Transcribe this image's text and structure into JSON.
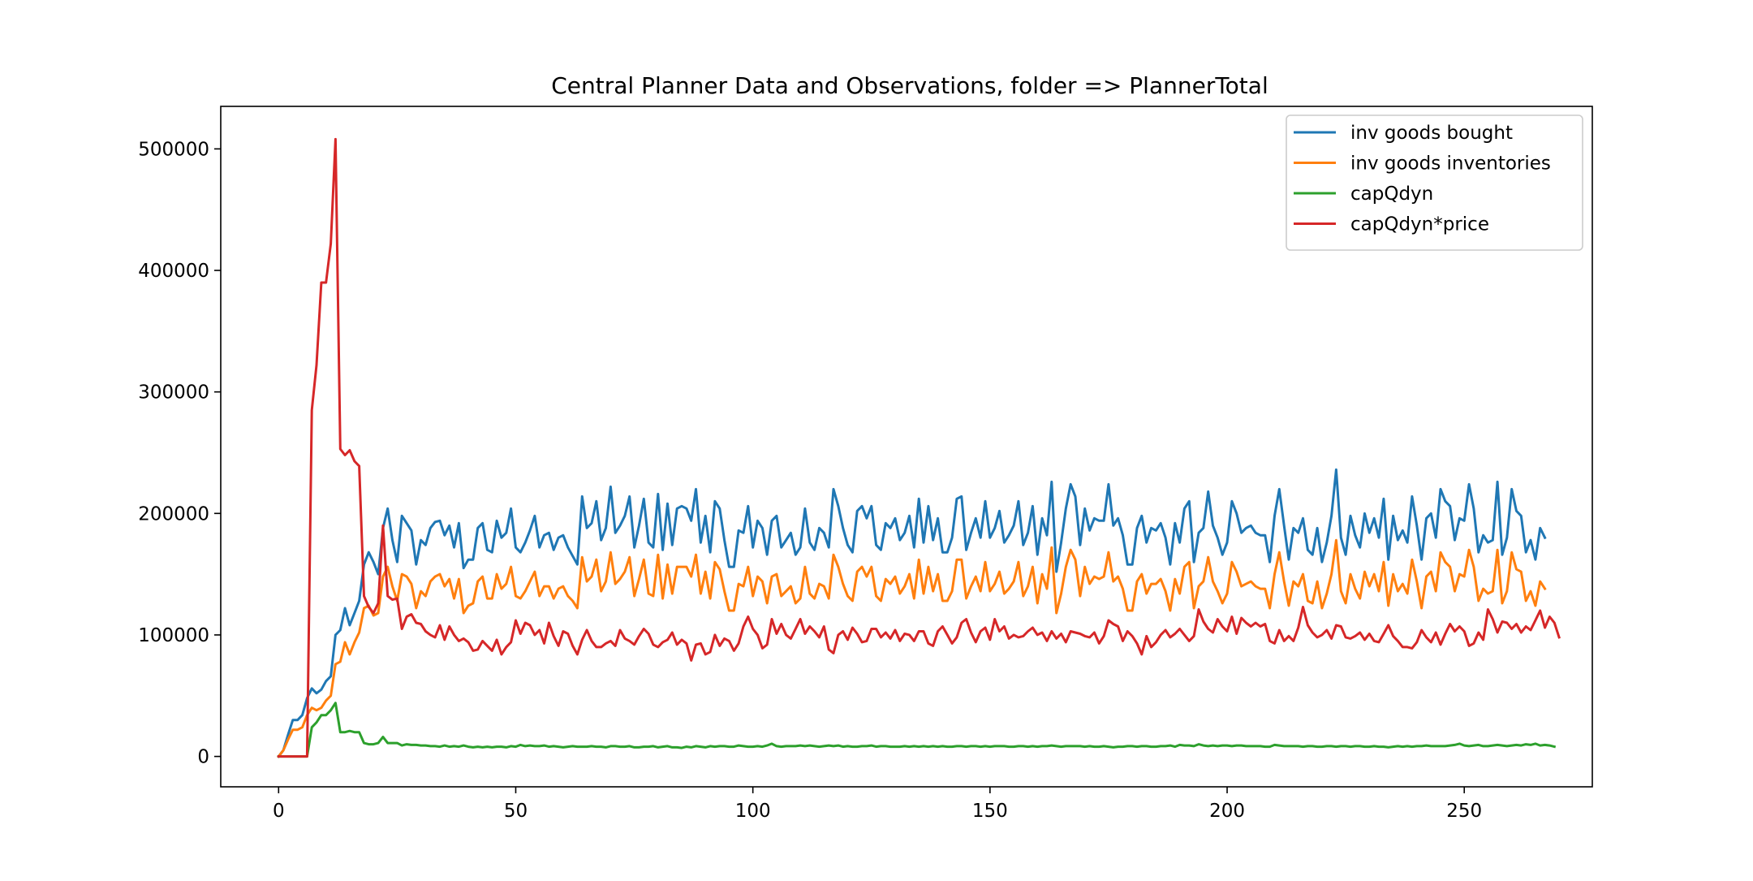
{
  "chart_data": {
    "type": "line",
    "title": "Central Planner Data and Observations, folder => PlannerTotal",
    "xlabel": "",
    "ylabel": "",
    "xlim": [
      -12.2,
      277
    ],
    "ylim": [
      -25000,
      535000
    ],
    "x_ticks": [
      0,
      50,
      100,
      150,
      200,
      250
    ],
    "y_ticks": [
      0,
      100000,
      200000,
      300000,
      400000,
      500000
    ],
    "x_tick_labels": [
      "0",
      "50",
      "100",
      "150",
      "200",
      "250"
    ],
    "y_tick_labels": [
      "0",
      "100000",
      "200000",
      "300000",
      "400000",
      "500000"
    ],
    "legend_position": "top-right",
    "grid": false,
    "x_start": 0,
    "x_step": 1,
    "series": [
      {
        "name": "inv goods bought",
        "color": "#1f77b4",
        "values": [
          0,
          5000,
          18000,
          30000,
          30000,
          34000,
          48000,
          56000,
          52000,
          55000,
          62000,
          66000,
          100000,
          104000,
          122000,
          108000,
          118000,
          128000,
          158000,
          168000,
          160000,
          150000,
          188000,
          204000,
          178000,
          160000,
          198000,
          192000,
          186000,
          158000,
          178000,
          174000,
          188000,
          193000,
          194000,
          182000,
          190000,
          172000,
          192000,
          155000,
          162000,
          162000,
          188000,
          192000,
          170000,
          168000,
          194000,
          180000,
          184000,
          204000,
          172000,
          168000,
          176000,
          186000,
          198000,
          172000,
          182000,
          184000,
          170000,
          180000,
          182000,
          172000,
          165000,
          158000,
          214000,
          188000,
          192000,
          210000,
          178000,
          188000,
          222000,
          184000,
          190000,
          198000,
          214000,
          172000,
          190000,
          212000,
          176000,
          172000,
          216000,
          170000,
          208000,
          174000,
          204000,
          206000,
          204000,
          194000,
          220000,
          176000,
          198000,
          168000,
          210000,
          204000,
          178000,
          156000,
          156000,
          186000,
          184000,
          206000,
          172000,
          194000,
          188000,
          166000,
          194000,
          198000,
          172000,
          178000,
          184000,
          166000,
          172000,
          204000,
          176000,
          170000,
          188000,
          184000,
          172000,
          220000,
          206000,
          188000,
          174000,
          168000,
          202000,
          206000,
          196000,
          206000,
          174000,
          170000,
          192000,
          188000,
          196000,
          178000,
          184000,
          198000,
          172000,
          212000,
          176000,
          206000,
          178000,
          196000,
          168000,
          168000,
          180000,
          212000,
          214000,
          170000,
          184000,
          196000,
          180000,
          210000,
          180000,
          188000,
          202000,
          176000,
          182000,
          190000,
          210000,
          174000,
          184000,
          206000,
          166000,
          196000,
          182000,
          226000,
          152000,
          176000,
          204000,
          224000,
          214000,
          174000,
          204000,
          186000,
          196000,
          194000,
          194000,
          224000,
          190000,
          196000,
          182000,
          158000,
          158000,
          188000,
          198000,
          176000,
          188000,
          186000,
          192000,
          180000,
          158000,
          192000,
          176000,
          204000,
          210000,
          160000,
          184000,
          188000,
          218000,
          190000,
          180000,
          166000,
          176000,
          210000,
          200000,
          184000,
          188000,
          190000,
          184000,
          182000,
          182000,
          160000,
          198000,
          220000,
          190000,
          162000,
          188000,
          184000,
          196000,
          170000,
          166000,
          188000,
          160000,
          176000,
          198000,
          236000,
          180000,
          166000,
          198000,
          182000,
          172000,
          200000,
          184000,
          196000,
          180000,
          212000,
          162000,
          198000,
          178000,
          186000,
          176000,
          214000,
          190000,
          162000,
          196000,
          200000,
          180000,
          220000,
          210000,
          206000,
          178000,
          196000,
          194000,
          224000,
          204000,
          168000,
          182000,
          176000,
          178000,
          226000,
          166000,
          180000,
          220000,
          202000,
          198000,
          168000,
          178000,
          162000,
          188000,
          180000
        ]
      },
      {
        "name": "inv goods inventories",
        "color": "#ff7f0e",
        "values": [
          0,
          5000,
          14000,
          22000,
          22000,
          24000,
          34000,
          40000,
          38000,
          40000,
          46000,
          50000,
          76000,
          78000,
          94000,
          84000,
          94000,
          102000,
          122000,
          124000,
          116000,
          118000,
          148000,
          156000,
          140000,
          128000,
          150000,
          148000,
          142000,
          122000,
          136000,
          132000,
          144000,
          148000,
          150000,
          140000,
          146000,
          130000,
          146000,
          118000,
          124000,
          126000,
          144000,
          148000,
          130000,
          130000,
          150000,
          138000,
          142000,
          156000,
          132000,
          130000,
          136000,
          144000,
          152000,
          132000,
          140000,
          140000,
          130000,
          138000,
          140000,
          132000,
          128000,
          122000,
          164000,
          144000,
          148000,
          162000,
          136000,
          144000,
          168000,
          142000,
          146000,
          152000,
          164000,
          132000,
          146000,
          162000,
          134000,
          132000,
          166000,
          130000,
          158000,
          134000,
          156000,
          156000,
          156000,
          148000,
          166000,
          134000,
          152000,
          130000,
          160000,
          154000,
          136000,
          120000,
          120000,
          142000,
          140000,
          156000,
          132000,
          148000,
          144000,
          126000,
          148000,
          150000,
          132000,
          136000,
          140000,
          126000,
          130000,
          156000,
          134000,
          130000,
          142000,
          140000,
          130000,
          166000,
          156000,
          142000,
          132000,
          128000,
          152000,
          156000,
          148000,
          156000,
          132000,
          128000,
          146000,
          142000,
          148000,
          134000,
          140000,
          150000,
          130000,
          162000,
          134000,
          156000,
          136000,
          150000,
          128000,
          128000,
          136000,
          162000,
          162000,
          130000,
          140000,
          148000,
          136000,
          160000,
          136000,
          142000,
          152000,
          134000,
          138000,
          144000,
          160000,
          132000,
          140000,
          156000,
          126000,
          150000,
          138000,
          172000,
          118000,
          134000,
          156000,
          170000,
          162000,
          132000,
          156000,
          142000,
          148000,
          146000,
          148000,
          168000,
          144000,
          148000,
          138000,
          120000,
          120000,
          144000,
          150000,
          134000,
          142000,
          142000,
          146000,
          136000,
          120000,
          146000,
          134000,
          156000,
          160000,
          122000,
          140000,
          144000,
          164000,
          144000,
          136000,
          126000,
          134000,
          160000,
          152000,
          140000,
          142000,
          144000,
          140000,
          138000,
          138000,
          122000,
          150000,
          168000,
          144000,
          124000,
          144000,
          140000,
          150000,
          128000,
          126000,
          144000,
          122000,
          134000,
          150000,
          178000,
          136000,
          126000,
          150000,
          138000,
          130000,
          152000,
          140000,
          150000,
          136000,
          160000,
          124000,
          150000,
          136000,
          142000,
          134000,
          162000,
          144000,
          122000,
          148000,
          152000,
          136000,
          168000,
          160000,
          156000,
          136000,
          150000,
          148000,
          170000,
          156000,
          128000,
          138000,
          134000,
          136000,
          170000,
          126000,
          136000,
          168000,
          154000,
          152000,
          128000,
          136000,
          124000,
          144000,
          138000
        ]
      },
      {
        "name": "capQdyn",
        "color": "#2ca02c",
        "values": [
          0,
          0,
          0,
          0,
          0,
          0,
          0,
          24000,
          28000,
          34000,
          34000,
          38000,
          44000,
          20000,
          20000,
          21000,
          20000,
          20000,
          11000,
          10000,
          10000,
          11000,
          16000,
          11000,
          11000,
          11000,
          9000,
          10000,
          9500,
          9500,
          9000,
          9000,
          8500,
          8500,
          8000,
          9000,
          8000,
          8500,
          8000,
          9000,
          8000,
          7500,
          8000,
          7500,
          8000,
          7500,
          8000,
          8000,
          7500,
          8500,
          8000,
          9500,
          8500,
          9000,
          8500,
          8500,
          9000,
          8000,
          8500,
          8000,
          7500,
          8000,
          8500,
          8000,
          8000,
          8000,
          8500,
          8000,
          8000,
          7500,
          8500,
          8500,
          8000,
          8000,
          8500,
          7500,
          7500,
          8000,
          8000,
          8500,
          7500,
          8000,
          8500,
          7500,
          7500,
          7000,
          8000,
          7500,
          8500,
          8000,
          7500,
          8500,
          8000,
          8500,
          8500,
          8000,
          8000,
          9000,
          8500,
          8000,
          8000,
          8500,
          8000,
          9000,
          10500,
          8500,
          8000,
          8500,
          8500,
          8500,
          9000,
          8500,
          9000,
          8500,
          8000,
          8500,
          9000,
          8500,
          9000,
          8000,
          8500,
          8000,
          8000,
          8500,
          8500,
          9000,
          8000,
          8500,
          8500,
          8000,
          8000,
          8000,
          8500,
          8000,
          8500,
          8000,
          8500,
          8000,
          8500,
          8000,
          8500,
          8000,
          8000,
          8500,
          8500,
          8000,
          8500,
          8500,
          8000,
          8500,
          8000,
          8500,
          8500,
          8500,
          8000,
          8000,
          8500,
          8500,
          8000,
          8500,
          8000,
          8500,
          8500,
          9000,
          8500,
          8000,
          8500,
          8500,
          8500,
          8500,
          8000,
          8500,
          8000,
          8000,
          8500,
          8000,
          7500,
          8000,
          8000,
          8500,
          8500,
          8000,
          8500,
          8500,
          8000,
          8000,
          8500,
          8500,
          9000,
          8000,
          9500,
          9000,
          9000,
          8500,
          10000,
          9000,
          8500,
          9000,
          8500,
          9000,
          9000,
          8500,
          9000,
          9000,
          8500,
          8500,
          8500,
          8500,
          8000,
          8000,
          9500,
          9000,
          8500,
          8500,
          8500,
          8500,
          8000,
          8500,
          8500,
          8000,
          8000,
          8500,
          8500,
          8000,
          8500,
          8500,
          8000,
          8500,
          8500,
          8000,
          8000,
          8500,
          8000,
          8000,
          7500,
          8000,
          8500,
          8000,
          8500,
          8000,
          8500,
          8500,
          9000,
          8500,
          8500,
          8500,
          8500,
          9000,
          9500,
          10500,
          9000,
          8500,
          9000,
          9500,
          8500,
          8500,
          9000,
          9500,
          9000,
          8500,
          9000,
          9500,
          9000,
          10000,
          9500,
          10500,
          9000,
          9500,
          9000,
          8000
        ]
      },
      {
        "name": "capQdyn*price",
        "color": "#d62728",
        "values": [
          0,
          0,
          0,
          0,
          0,
          0,
          0,
          285000,
          322000,
          390000,
          390000,
          422000,
          508000,
          253000,
          248000,
          252000,
          243000,
          239000,
          132000,
          123000,
          118000,
          126000,
          190000,
          132000,
          129000,
          130000,
          105000,
          115000,
          117000,
          110000,
          109000,
          103000,
          100000,
          98000,
          108000,
          96000,
          107000,
          100000,
          95000,
          97000,
          94000,
          87000,
          88000,
          95000,
          91000,
          87000,
          96000,
          84000,
          90000,
          94000,
          112000,
          101000,
          110000,
          108000,
          100000,
          104000,
          93000,
          110000,
          99000,
          91000,
          103000,
          101000,
          91000,
          84000,
          96000,
          104000,
          95000,
          90000,
          90000,
          93000,
          95000,
          91000,
          104000,
          97000,
          95000,
          92000,
          99000,
          105000,
          101000,
          92000,
          90000,
          94000,
          96000,
          102000,
          92000,
          96000,
          93000,
          79000,
          92000,
          93000,
          84000,
          86000,
          100000,
          91000,
          97000,
          95000,
          87000,
          93000,
          107000,
          115000,
          105000,
          100000,
          89000,
          92000,
          113000,
          101000,
          109000,
          100000,
          97000,
          105000,
          113000,
          101000,
          107000,
          103000,
          98000,
          107000,
          88000,
          85000,
          100000,
          103000,
          96000,
          106000,
          101000,
          94000,
          95000,
          105000,
          105000,
          98000,
          102000,
          97000,
          104000,
          95000,
          101000,
          100000,
          95000,
          103000,
          103000,
          93000,
          91000,
          103000,
          107000,
          100000,
          93000,
          98000,
          110000,
          113000,
          102000,
          94000,
          103000,
          106000,
          96000,
          113000,
          103000,
          107000,
          97000,
          100000,
          98000,
          99000,
          103000,
          106000,
          100000,
          102000,
          95000,
          103000,
          97000,
          101000,
          94000,
          103000,
          102000,
          101000,
          99000,
          98000,
          102000,
          93000,
          99000,
          112000,
          109000,
          107000,
          95000,
          103000,
          99000,
          93000,
          84000,
          99000,
          90000,
          94000,
          100000,
          104000,
          98000,
          101000,
          105000,
          100000,
          95000,
          99000,
          121000,
          111000,
          105000,
          102000,
          113000,
          107000,
          103000,
          115000,
          101000,
          114000,
          110000,
          107000,
          110000,
          107000,
          109000,
          95000,
          93000,
          104000,
          95000,
          99000,
          95000,
          106000,
          123000,
          108000,
          102000,
          98000,
          100000,
          104000,
          97000,
          108000,
          107000,
          98000,
          97000,
          99000,
          102000,
          96000,
          101000,
          95000,
          94000,
          101000,
          108000,
          99000,
          95000,
          90000,
          90000,
          89000,
          94000,
          104000,
          98000,
          94000,
          102000,
          92000,
          101000,
          109000,
          103000,
          107000,
          103000,
          91000,
          93000,
          102000,
          96000,
          121000,
          113000,
          102000,
          111000,
          110000,
          105000,
          109000,
          102000,
          107000,
          104000,
          112000,
          120000,
          106000,
          115000,
          110000,
          98000
        ]
      }
    ]
  }
}
